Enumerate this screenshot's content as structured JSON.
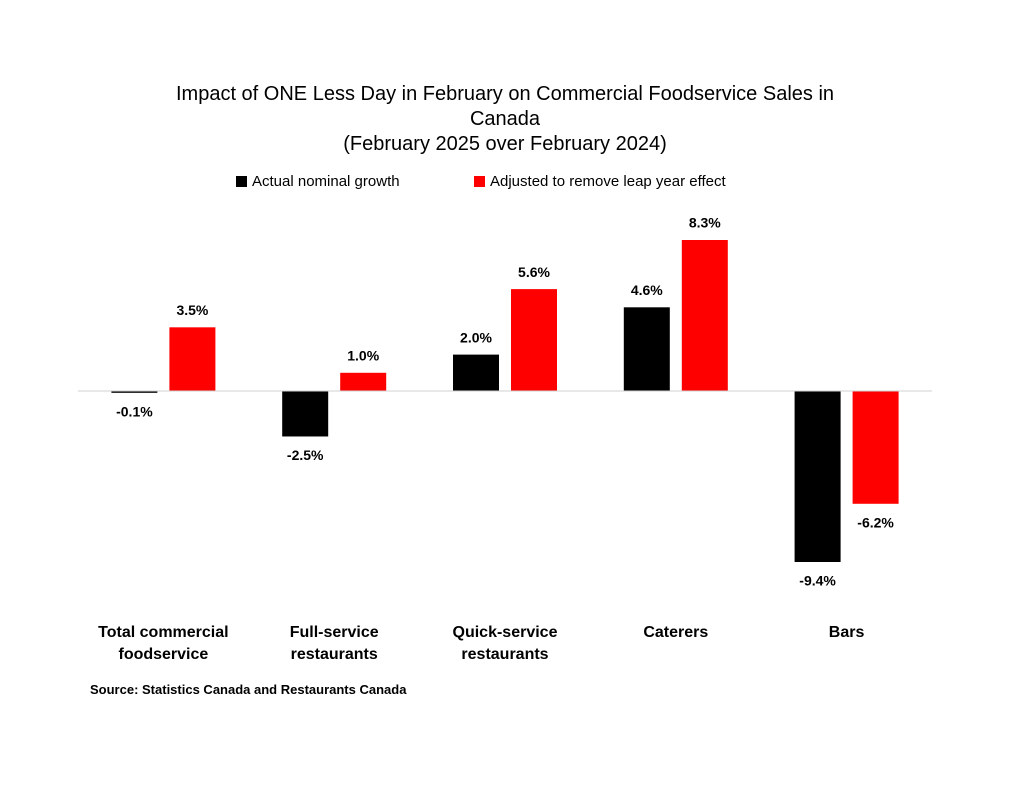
{
  "chart_data": {
    "type": "bar",
    "title": "Impact of ONE Less Day in February on Commercial Foodservice Sales in Canada",
    "subtitle": "(February 2025 over February 2024)",
    "categories": [
      "Total commercial foodservice",
      "Full-service restaurants",
      "Quick-service restaurants",
      "Caterers",
      "Bars"
    ],
    "series": [
      {
        "name": "Actual nominal growth",
        "color": "#000000",
        "values": [
          -0.1,
          -2.5,
          2.0,
          4.6,
          -9.4
        ],
        "value_labels": [
          "-0.1%",
          "-2.5%",
          "2.0%",
          "4.6%",
          "-9.4%"
        ]
      },
      {
        "name": "Adjusted to remove leap year effect",
        "color": "#ff0000",
        "values": [
          3.5,
          1.0,
          5.6,
          8.3,
          -6.2
        ],
        "value_labels": [
          "3.5%",
          "1.0%",
          "5.6%",
          "8.3%",
          "-6.2%"
        ]
      }
    ],
    "legend": "top",
    "source": "Source: Statistics Canada and Restaurants Canada"
  }
}
